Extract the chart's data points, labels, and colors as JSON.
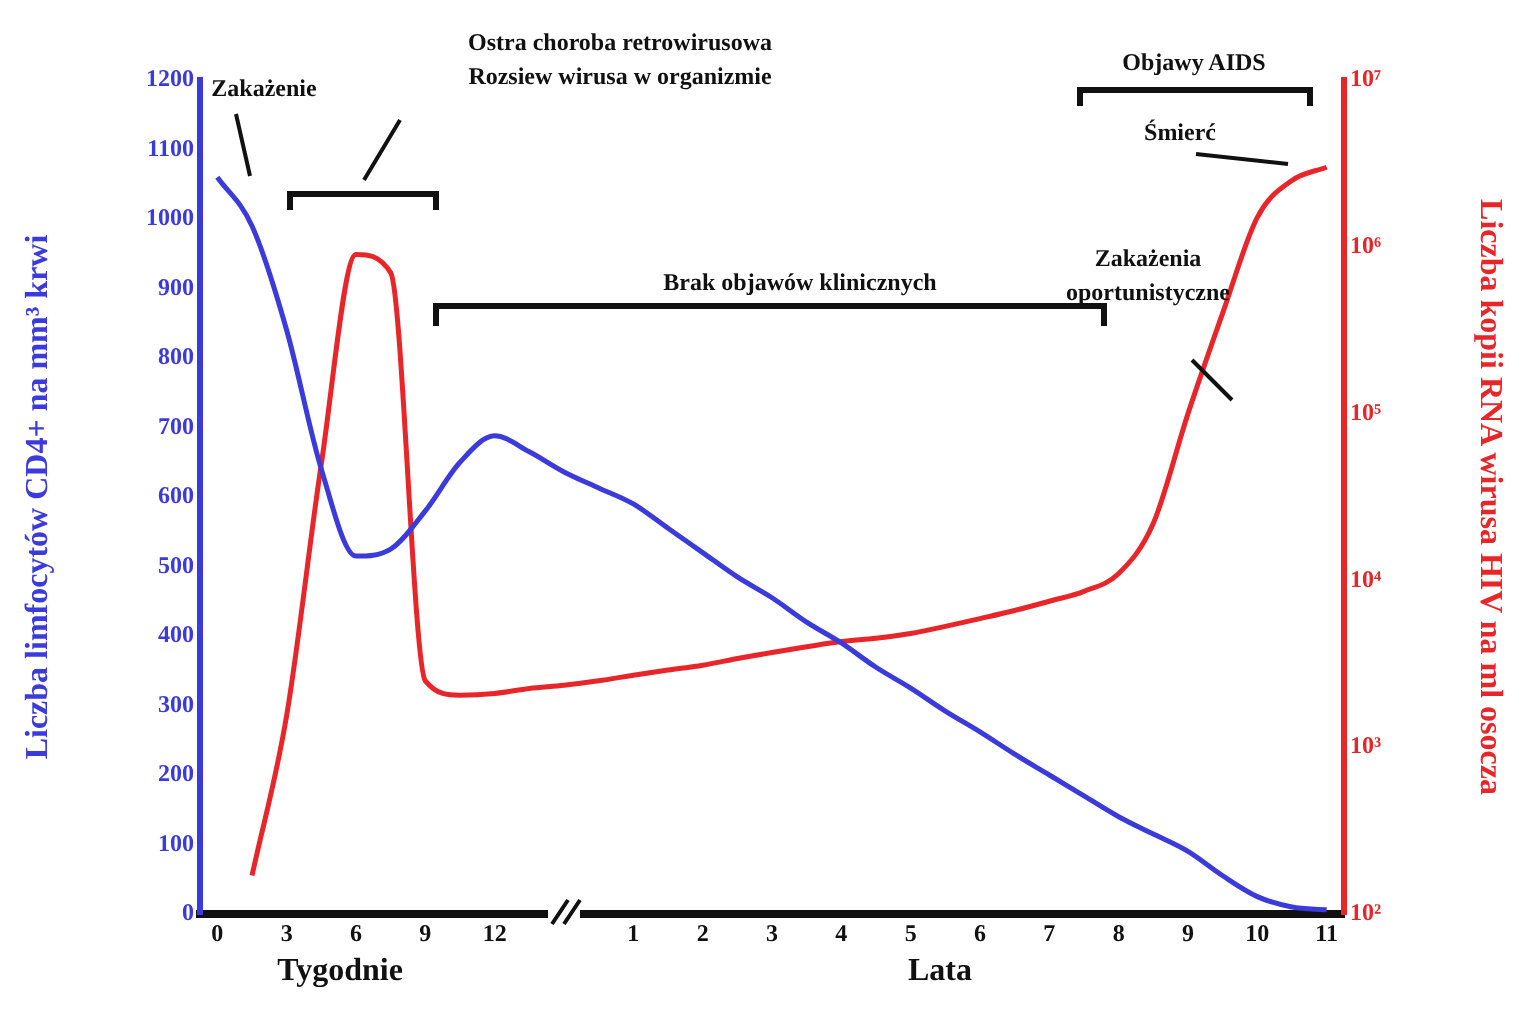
{
  "chart_data": {
    "type": "line",
    "xlabel": "Tygodnie",
    "ylabel": "Liczba limfocytów CD4+ na mm³ krwi",
    "y2label": "Liczba kopii RNA wirusa HIV na ml osocza",
    "categories": [
      "0",
      null,
      "3",
      null,
      "6",
      null,
      "9",
      null,
      "12",
      null,
      null,
      null,
      "1",
      null,
      "2",
      null,
      "3",
      null,
      "4",
      null,
      "5",
      null,
      "6",
      null,
      "7",
      null,
      "8",
      null,
      "9",
      null,
      "10",
      null,
      "11"
    ],
    "ylim": [
      0,
      1200
    ],
    "yticks": [
      0,
      100,
      200,
      300,
      400,
      500,
      600,
      700,
      800,
      900,
      1000,
      1100,
      1200
    ],
    "y2lim": [
      100,
      10000000
    ],
    "y2ticks": [
      {
        "value": 100,
        "label": "10²"
      },
      {
        "value": 1000,
        "label": "10³"
      },
      {
        "value": 10000,
        "label": "10⁴"
      },
      {
        "value": 100000,
        "label": "10⁵"
      },
      {
        "value": 1000000,
        "label": "10⁶"
      },
      {
        "value": 10000000,
        "label": "10⁷"
      }
    ],
    "log": "y2",
    "grid": false,
    "legend": false,
    "marker": "none",
    "line_style": "solid",
    "series": [
      {
        "color": "#3b3bdc",
        "values": [
          1060,
          990,
          840,
          640,
          515,
          525,
          580,
          650,
          688,
          665,
          636,
          613,
          590,
          555,
          520,
          485,
          455,
          420,
          390,
          355,
          325,
          292,
          262,
          230,
          200,
          170,
          140,
          115,
          90,
          55,
          25,
          10,
          6
        ]
      },
      {
        "color": "#e8262a",
        "axis": "y2",
        "values": [
          null,
          170,
          1550,
          50000,
          900000,
          700000,
          2500,
          2050,
          2100,
          2250,
          2350,
          2500,
          2700,
          2900,
          3100,
          3400,
          3700,
          4000,
          4300,
          4500,
          4800,
          5300,
          5900,
          6600,
          7500,
          8600,
          11000,
          22000,
          100000,
          400000,
          1500000,
          2500000,
          3000000
        ]
      }
    ],
    "annotations": [
      "Zakażenie",
      "Ostra choroba retrowirusowa\nRozsiew wirusa w organizmie",
      "Brak objawów klinicznych",
      "Objawy AIDS",
      "Śmierć",
      "Zakażenia\noportunistyczne",
      "Lata"
    ]
  }
}
